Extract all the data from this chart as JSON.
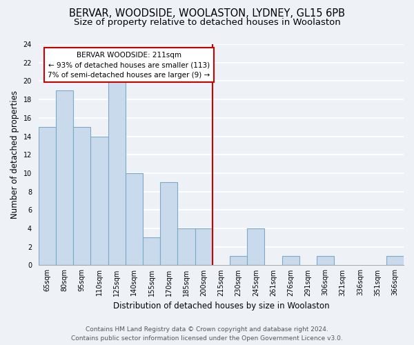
{
  "title": "BERVAR, WOODSIDE, WOOLASTON, LYDNEY, GL15 6PB",
  "subtitle": "Size of property relative to detached houses in Woolaston",
  "xlabel": "Distribution of detached houses by size in Woolaston",
  "ylabel": "Number of detached properties",
  "bar_color": "#c8daeb",
  "bar_edge_color": "#7aaac8",
  "bin_labels": [
    "65sqm",
    "80sqm",
    "95sqm",
    "110sqm",
    "125sqm",
    "140sqm",
    "155sqm",
    "170sqm",
    "185sqm",
    "200sqm",
    "215sqm",
    "230sqm",
    "245sqm",
    "261sqm",
    "276sqm",
    "291sqm",
    "306sqm",
    "321sqm",
    "336sqm",
    "351sqm",
    "366sqm"
  ],
  "bin_values": [
    15,
    19,
    15,
    14,
    20,
    10,
    3,
    9,
    4,
    4,
    0,
    1,
    4,
    0,
    1,
    0,
    1,
    0,
    0,
    0,
    1
  ],
  "ylim": [
    0,
    24
  ],
  "yticks": [
    0,
    2,
    4,
    6,
    8,
    10,
    12,
    14,
    16,
    18,
    20,
    22,
    24
  ],
  "annotation_title": "BERVAR WOODSIDE: 211sqm",
  "annotation_line1": "← 93% of detached houses are smaller (113)",
  "annotation_line2": "7% of semi-detached houses are larger (9) →",
  "annotation_box_color": "#ffffff",
  "annotation_border_color": "#cc0000",
  "vline_color": "#cc0000",
  "footer_line1": "Contains HM Land Registry data © Crown copyright and database right 2024.",
  "footer_line2": "Contains public sector information licensed under the Open Government Licence v3.0.",
  "background_color": "#eef2f7",
  "plot_background": "#eef2f7",
  "grid_color": "#ffffff",
  "title_fontsize": 10.5,
  "subtitle_fontsize": 9.5,
  "axis_label_fontsize": 8.5,
  "ylabel_fontsize": 8.5,
  "tick_fontsize": 7,
  "footer_fontsize": 6.5,
  "annot_fontsize": 7.5
}
